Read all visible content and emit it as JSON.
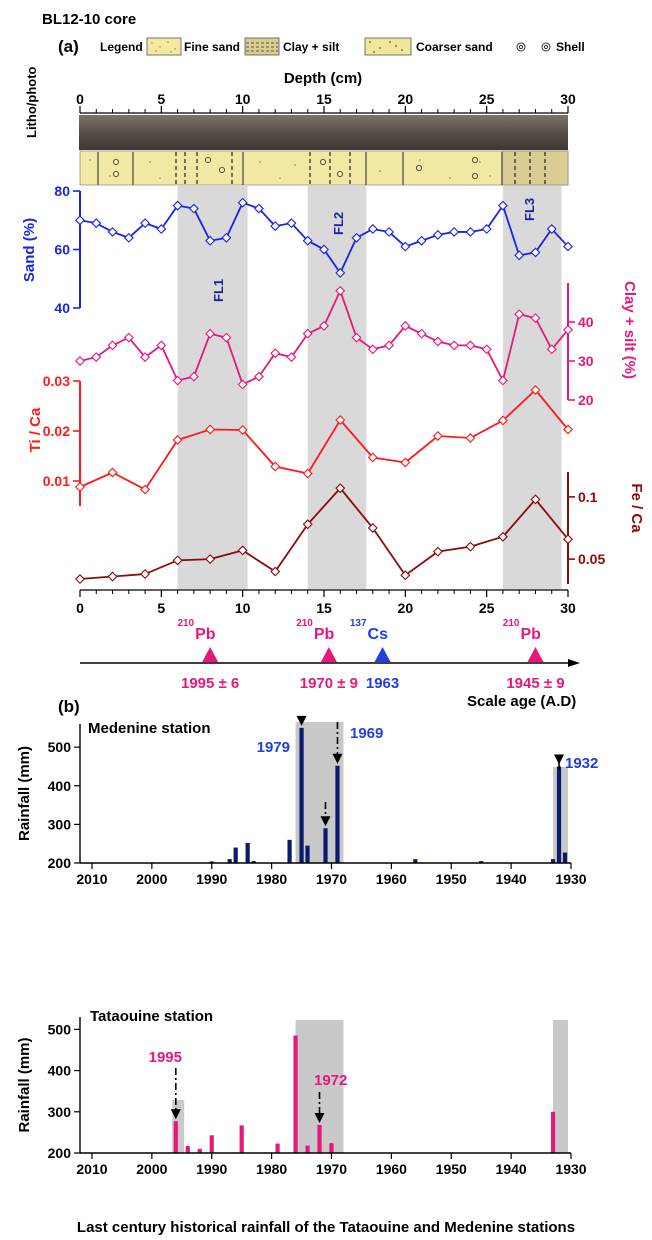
{
  "figure": {
    "core_title": "BL12-10 core",
    "caption": "Last century historical rainfall of the Tataouine and Medenine stations"
  },
  "panel_a": {
    "label": "(a)",
    "legend": {
      "title": "Legend",
      "items": [
        "Fine sand",
        "Clay + silt",
        "Coarser sand",
        "Shell"
      ]
    },
    "litho_label": "Litho/photo",
    "flood_labels": [
      "FL1",
      "FL2",
      "FL3"
    ],
    "age_axis": {
      "label": "Scale age (A.D)",
      "markers": [
        {
          "isotope_mass": "210",
          "isotope": "Pb",
          "date": "1995 ± 6",
          "depth": 8,
          "color": "#e6197a"
        },
        {
          "isotope_mass": "210",
          "isotope": "Pb",
          "date": "1970 ± 9",
          "depth": 15.3,
          "color": "#e6197a"
        },
        {
          "isotope_mass": "137",
          "isotope": "Cs",
          "date": "1963",
          "depth": 18.6,
          "color": "#1f3fe0"
        },
        {
          "isotope_mass": "210",
          "isotope": "Pb",
          "date": "1945 ± 9",
          "depth": 28,
          "color": "#e6197a"
        }
      ]
    }
  },
  "panel_b": {
    "label": "(b)",
    "medenine": {
      "station": "Medenine station",
      "annotations": [
        "1979",
        "1969",
        "1932"
      ]
    },
    "tataouine": {
      "station": "Tataouine station",
      "annotations": [
        "1995",
        "1972"
      ]
    }
  },
  "chart_data": [
    {
      "type": "line",
      "name": "core-proxies",
      "xlabel": "Depth (cm)",
      "xlim": [
        0,
        30
      ],
      "x_ticks": [
        0,
        5,
        10,
        15,
        20,
        25,
        30
      ],
      "shaded_intervals": [
        [
          6,
          10.3
        ],
        [
          14,
          17.6
        ],
        [
          26,
          29.6
        ]
      ],
      "series": [
        {
          "name": "Sand (%)",
          "color": "#1a24e6",
          "ylim": [
            40,
            80
          ],
          "y_ticks": [
            40,
            60,
            80
          ],
          "x": [
            0,
            1,
            2,
            3,
            4,
            5,
            6,
            7,
            8,
            9,
            10,
            11,
            12,
            13,
            14,
            15,
            16,
            17,
            18,
            19,
            20,
            21,
            22,
            23,
            24,
            25,
            26,
            27,
            28,
            29,
            30
          ],
          "values": [
            70,
            69,
            66,
            64,
            69,
            67,
            75,
            74,
            63,
            64,
            76,
            74,
            68,
            69,
            63,
            60,
            52,
            64,
            67,
            66,
            61,
            63,
            65,
            66,
            66,
            67,
            75,
            58,
            59,
            67,
            61
          ]
        },
        {
          "name": "Clay + silt (%)",
          "color": "#e6197a",
          "ylim": [
            20,
            50
          ],
          "y_ticks": [
            20,
            30,
            40
          ],
          "x": [
            0,
            1,
            2,
            3,
            4,
            5,
            6,
            7,
            8,
            9,
            10,
            11,
            12,
            13,
            14,
            15,
            16,
            17,
            18,
            19,
            20,
            21,
            22,
            23,
            24,
            25,
            26,
            27,
            28,
            29,
            30
          ],
          "values": [
            30,
            31,
            34,
            36,
            31,
            34,
            25,
            26,
            37,
            36,
            24,
            26,
            32,
            31,
            37,
            39,
            48,
            36,
            33,
            34,
            39,
            37,
            35,
            34,
            34,
            33,
            25,
            42,
            41,
            33,
            38
          ]
        },
        {
          "name": "Ti / Ca",
          "color": "#ff1a1a",
          "ylim": [
            0.005,
            0.03
          ],
          "y_ticks": [
            0.01,
            0.02,
            0.03
          ],
          "x": [
            0,
            2,
            4,
            6,
            8,
            10,
            12,
            14,
            16,
            18,
            20,
            22,
            24,
            26,
            28,
            30
          ],
          "values": [
            0.0088,
            0.0117,
            0.0083,
            0.0182,
            0.0203,
            0.0202,
            0.0129,
            0.0115,
            0.0222,
            0.0147,
            0.0137,
            0.019,
            0.0186,
            0.0221,
            0.0282,
            0.0203
          ]
        },
        {
          "name": "Fe / Ca",
          "color": "#8b0a0a",
          "ylim": [
            0.03,
            0.12
          ],
          "y_ticks": [
            0.05,
            0.1
          ],
          "x": [
            0,
            2,
            4,
            6,
            8,
            10,
            12,
            14,
            16,
            18,
            20,
            22,
            24,
            26,
            28,
            30
          ],
          "values": [
            0.034,
            0.036,
            0.038,
            0.049,
            0.05,
            0.057,
            0.04,
            0.078,
            0.107,
            0.075,
            0.037,
            0.056,
            0.06,
            0.068,
            0.098,
            0.066
          ]
        }
      ]
    },
    {
      "type": "bar",
      "name": "Medenine station",
      "xlim": [
        2012,
        1930
      ],
      "x_ticks": [
        2010,
        2000,
        1990,
        1980,
        1970,
        1960,
        1950,
        1940,
        1930
      ],
      "ylim": [
        200,
        560
      ],
      "y_ticks": [
        200,
        300,
        400,
        500
      ],
      "ylabel": "Rainfall (mm)",
      "color": "#0a1a6e",
      "shaded_intervals": [
        [
          1976,
          1968
        ],
        [
          1933,
          1930.5
        ]
      ],
      "x": [
        1990,
        1987,
        1986,
        1984,
        1983,
        1977,
        1975,
        1974,
        1971,
        1969,
        1956,
        1945,
        1933,
        1932,
        1931
      ],
      "values": [
        204,
        210,
        240,
        252,
        205,
        260,
        550,
        245,
        290,
        452,
        210,
        205,
        210,
        450,
        227
      ]
    },
    {
      "type": "bar",
      "name": "Tataouine station",
      "xlim": [
        2012,
        1930
      ],
      "x_ticks": [
        2010,
        2000,
        1990,
        1980,
        1970,
        1960,
        1950,
        1940,
        1930
      ],
      "ylim": [
        200,
        530
      ],
      "y_ticks": [
        200,
        300,
        400,
        500
      ],
      "ylabel": "Rainfall (mm)",
      "color": "#e6197a",
      "shaded_intervals": [
        [
          1996.6,
          1994.6
        ],
        [
          1976,
          1968
        ],
        [
          1933,
          1930.5
        ]
      ],
      "x": [
        1996,
        1994,
        1992,
        1990,
        1985,
        1979,
        1976,
        1974,
        1972,
        1970,
        1933
      ],
      "values": [
        277,
        217,
        210,
        243,
        267,
        223,
        485,
        218,
        268,
        224,
        300
      ]
    }
  ]
}
